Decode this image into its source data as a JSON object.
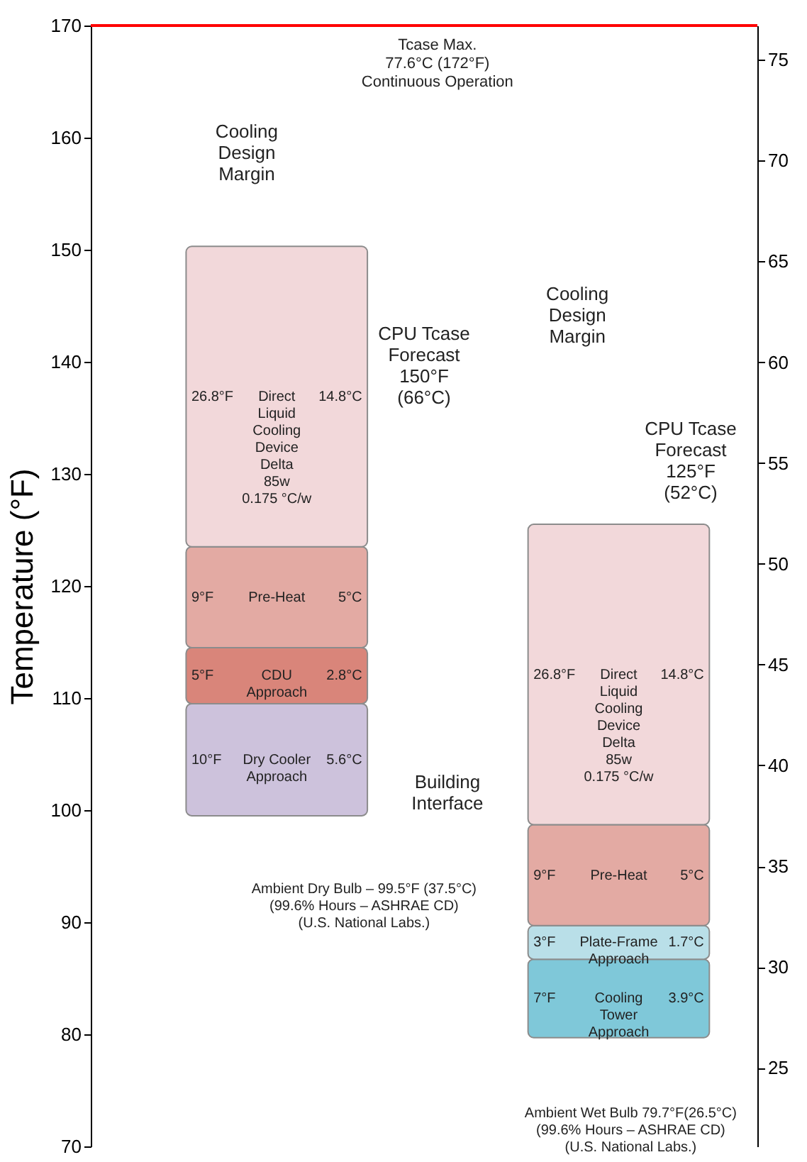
{
  "chart_data": {
    "type": "bar",
    "categories": [
      null,
      null
    ],
    "series": [
      {
        "name": "Dry Cooler\nApproach",
        "color": "#cdc2dc",
        "base": [
          99.5,
          null
        ],
        "values": [
          10,
          null
        ],
        "value_labels": [
          "10°F",
          null
        ]
      },
      {
        "name": "Cooling\nTower\nApproach",
        "color": "#7fc8d9",
        "base": [
          null,
          79.7
        ],
        "values": [
          null,
          7
        ],
        "value_labels": [
          null,
          "7°F"
        ]
      },
      {
        "name": "Plate-Frame\nApproach",
        "color": "#b9dfe8",
        "base": [
          null,
          86.7
        ],
        "values": [
          null,
          3
        ],
        "value_labels": [
          null,
          "3°F"
        ]
      },
      {
        "name": "CDU\nApproach",
        "color": "#d9857a",
        "base": [
          109.5,
          null
        ],
        "values": [
          5,
          null
        ],
        "value_labels": [
          "5°F",
          null
        ]
      },
      {
        "name": "Pre-Heat",
        "color": "#e3aaa3",
        "base": [
          114.5,
          89.7
        ],
        "values": [
          9,
          9
        ],
        "value_labels": [
          "9°F",
          "9°F"
        ]
      },
      {
        "name": "Direct\nLiquid\nCooling\nDevice\nDelta\n85w\n0.175 °C/w",
        "color": "#f2d8da",
        "base": [
          123.5,
          98.7
        ],
        "values": [
          26.8,
          26.8
        ],
        "value_labels": [
          "26.8°F",
          "26.8°F"
        ]
      }
    ],
    "ylabel": "Temperature (°F)",
    "ylim": [
      70,
      170
    ],
    "yticks": [
      70,
      80,
      90,
      100,
      110,
      120,
      130,
      140,
      150,
      160,
      170
    ],
    "y2lim": [
      21.1,
      76.7
    ],
    "y2ticks": [
      25,
      30,
      35,
      40,
      45,
      50,
      55,
      60,
      65,
      70,
      75
    ],
    "ref_lines": [
      {
        "axis": "y",
        "value": 170,
        "label": "Tcase Max.\n77.6°C (172°F)\nContinuous Operation",
        "color": "#ff0000"
      }
    ],
    "annotations": [
      "Cooling\nDesign\nMargin",
      "Cooling\nDesign\nMargin",
      "CPU Tcase\nForecast\n150°F\n(66°C)",
      "CPU Tcase\nForecast\n125°F\n(52°C)",
      "Building\nInterface",
      "Ambient Dry Bulb – 99.5°F (37.5°C)\n(99.6% Hours – ASHRAE CD)\n(U.S. National Labs.)",
      "Ambient Wet Bulb 79.7°F(26.5°C)\n(99.6% Hours – ASHRAE CD)\n(U.S. National Labs.)",
      "5.6°C",
      "2.8°C",
      "5°C",
      "14.8°C",
      "3.9°C",
      "1.7°C",
      "5°C",
      "14.8°C"
    ]
  }
}
